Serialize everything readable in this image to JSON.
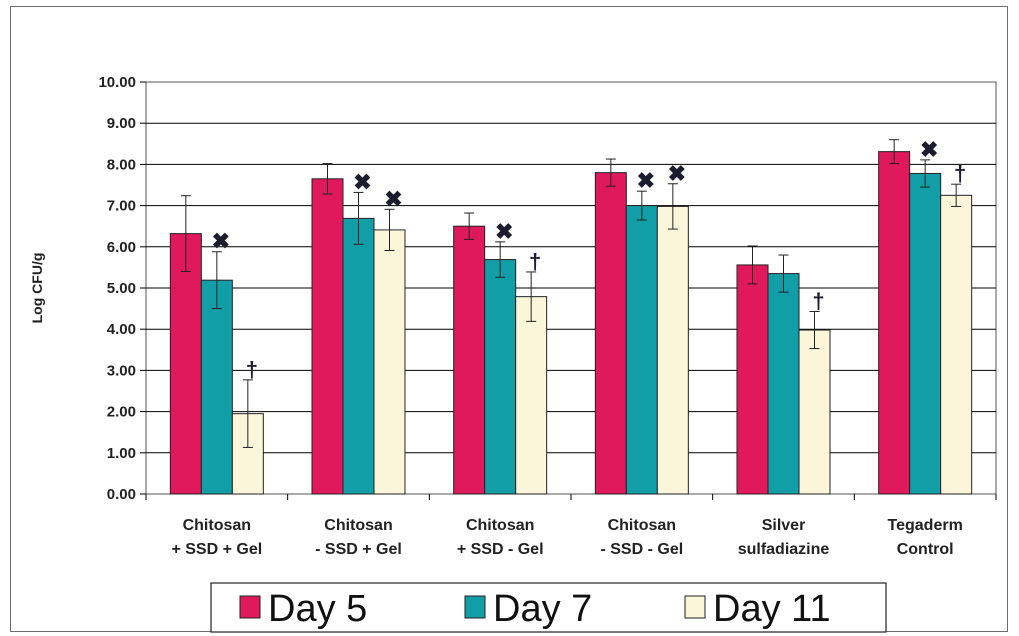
{
  "chart_data": {
    "type": "bar",
    "title": "",
    "xlabel": "",
    "ylabel": "Log CFU/g",
    "ylim": [
      0,
      10
    ],
    "yticks": [
      "0.00",
      "1.00",
      "2.00",
      "3.00",
      "4.00",
      "5.00",
      "6.00",
      "7.00",
      "8.00",
      "9.00",
      "10.00"
    ],
    "grid": true,
    "legend_position": "bottom",
    "categories": [
      [
        "Chitosan",
        "+ SSD + Gel"
      ],
      [
        "Chitosan",
        "- SSD + Gel"
      ],
      [
        "Chitosan",
        "+ SSD - Gel"
      ],
      [
        "Chitosan",
        "- SSD - Gel"
      ],
      [
        "Silver",
        "sulfadiazine"
      ],
      [
        "Tegaderm",
        "Control"
      ]
    ],
    "series": [
      {
        "name": "Day 5",
        "color": "#e0195c",
        "values": [
          6.32,
          7.65,
          6.5,
          7.8,
          5.56,
          8.31
        ],
        "errors": [
          0.92,
          0.37,
          0.32,
          0.33,
          0.46,
          0.29
        ],
        "markers": [
          "",
          "",
          "",
          "",
          "",
          ""
        ]
      },
      {
        "name": "Day 7",
        "color": "#129ea7",
        "values": [
          5.19,
          6.69,
          5.69,
          7.0,
          5.35,
          7.78
        ],
        "errors": [
          0.69,
          0.63,
          0.43,
          0.35,
          0.45,
          0.33
        ],
        "markers": [
          "✖",
          "✖",
          "✖",
          "✖",
          "",
          "✖"
        ]
      },
      {
        "name": "Day 11",
        "color": "#fbf6da",
        "values": [
          1.95,
          6.41,
          4.79,
          6.98,
          3.98,
          7.25
        ],
        "errors": [
          0.82,
          0.5,
          0.6,
          0.55,
          0.45,
          0.27
        ],
        "markers": [
          "†",
          "✖",
          "†",
          "✖",
          "†",
          "†"
        ]
      }
    ]
  }
}
